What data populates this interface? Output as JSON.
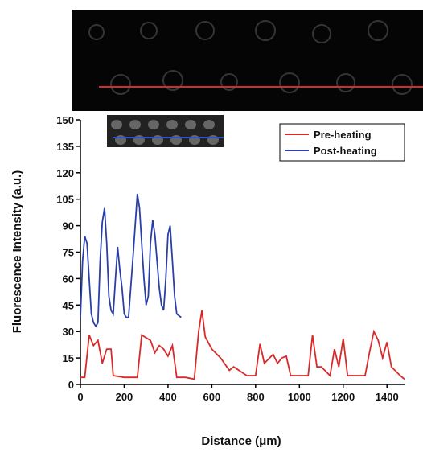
{
  "chart_data": {
    "type": "line",
    "xlabel": "Distance (μm)",
    "ylabel": "Fluorescence Intensity (a.u.)",
    "xlim": [
      0,
      1480
    ],
    "ylim": [
      0,
      150
    ],
    "xticks": [
      0,
      200,
      400,
      600,
      800,
      1000,
      1200,
      1400
    ],
    "yticks": [
      0,
      15,
      30,
      45,
      60,
      75,
      90,
      105,
      120,
      135,
      150
    ],
    "legend": "upper right",
    "series": [
      {
        "name": "Pre-heating",
        "color": "#d92a2a",
        "x": [
          0,
          20,
          40,
          60,
          80,
          100,
          120,
          140,
          150,
          200,
          260,
          280,
          320,
          340,
          360,
          380,
          400,
          420,
          440,
          480,
          520,
          540,
          555,
          570,
          600,
          640,
          680,
          700,
          760,
          800,
          820,
          840,
          880,
          900,
          920,
          940,
          960,
          1040,
          1060,
          1080,
          1100,
          1140,
          1160,
          1180,
          1200,
          1220,
          1300,
          1320,
          1340,
          1360,
          1380,
          1400,
          1420,
          1460,
          1480
        ],
        "values": [
          4,
          4,
          28,
          22,
          25,
          12,
          20,
          20,
          5,
          4,
          4,
          28,
          25,
          18,
          22,
          20,
          16,
          22,
          4,
          4,
          3,
          30,
          42,
          27,
          20,
          15,
          8,
          10,
          5,
          5,
          23,
          12,
          17,
          12,
          15,
          16,
          5,
          5,
          28,
          10,
          10,
          5,
          20,
          10,
          26,
          5,
          5,
          18,
          30,
          25,
          15,
          24,
          10,
          5,
          3
        ]
      },
      {
        "name": "Post-heating",
        "color": "#2b3fa8",
        "x": [
          0,
          10,
          20,
          30,
          40,
          50,
          60,
          70,
          80,
          90,
          100,
          110,
          120,
          130,
          140,
          150,
          160,
          170,
          180,
          190,
          200,
          210,
          220,
          230,
          240,
          250,
          260,
          270,
          280,
          290,
          300,
          310,
          320,
          330,
          340,
          350,
          360,
          370,
          380,
          390,
          400,
          410,
          420,
          430,
          440,
          450,
          460
        ],
        "values": [
          38,
          70,
          84,
          80,
          60,
          40,
          35,
          33,
          35,
          70,
          92,
          100,
          80,
          50,
          42,
          40,
          60,
          78,
          65,
          55,
          40,
          38,
          38,
          55,
          72,
          90,
          108,
          100,
          80,
          60,
          45,
          50,
          80,
          93,
          85,
          70,
          55,
          45,
          42,
          60,
          85,
          90,
          70,
          50,
          40,
          39,
          38
        ]
      }
    ]
  }
}
